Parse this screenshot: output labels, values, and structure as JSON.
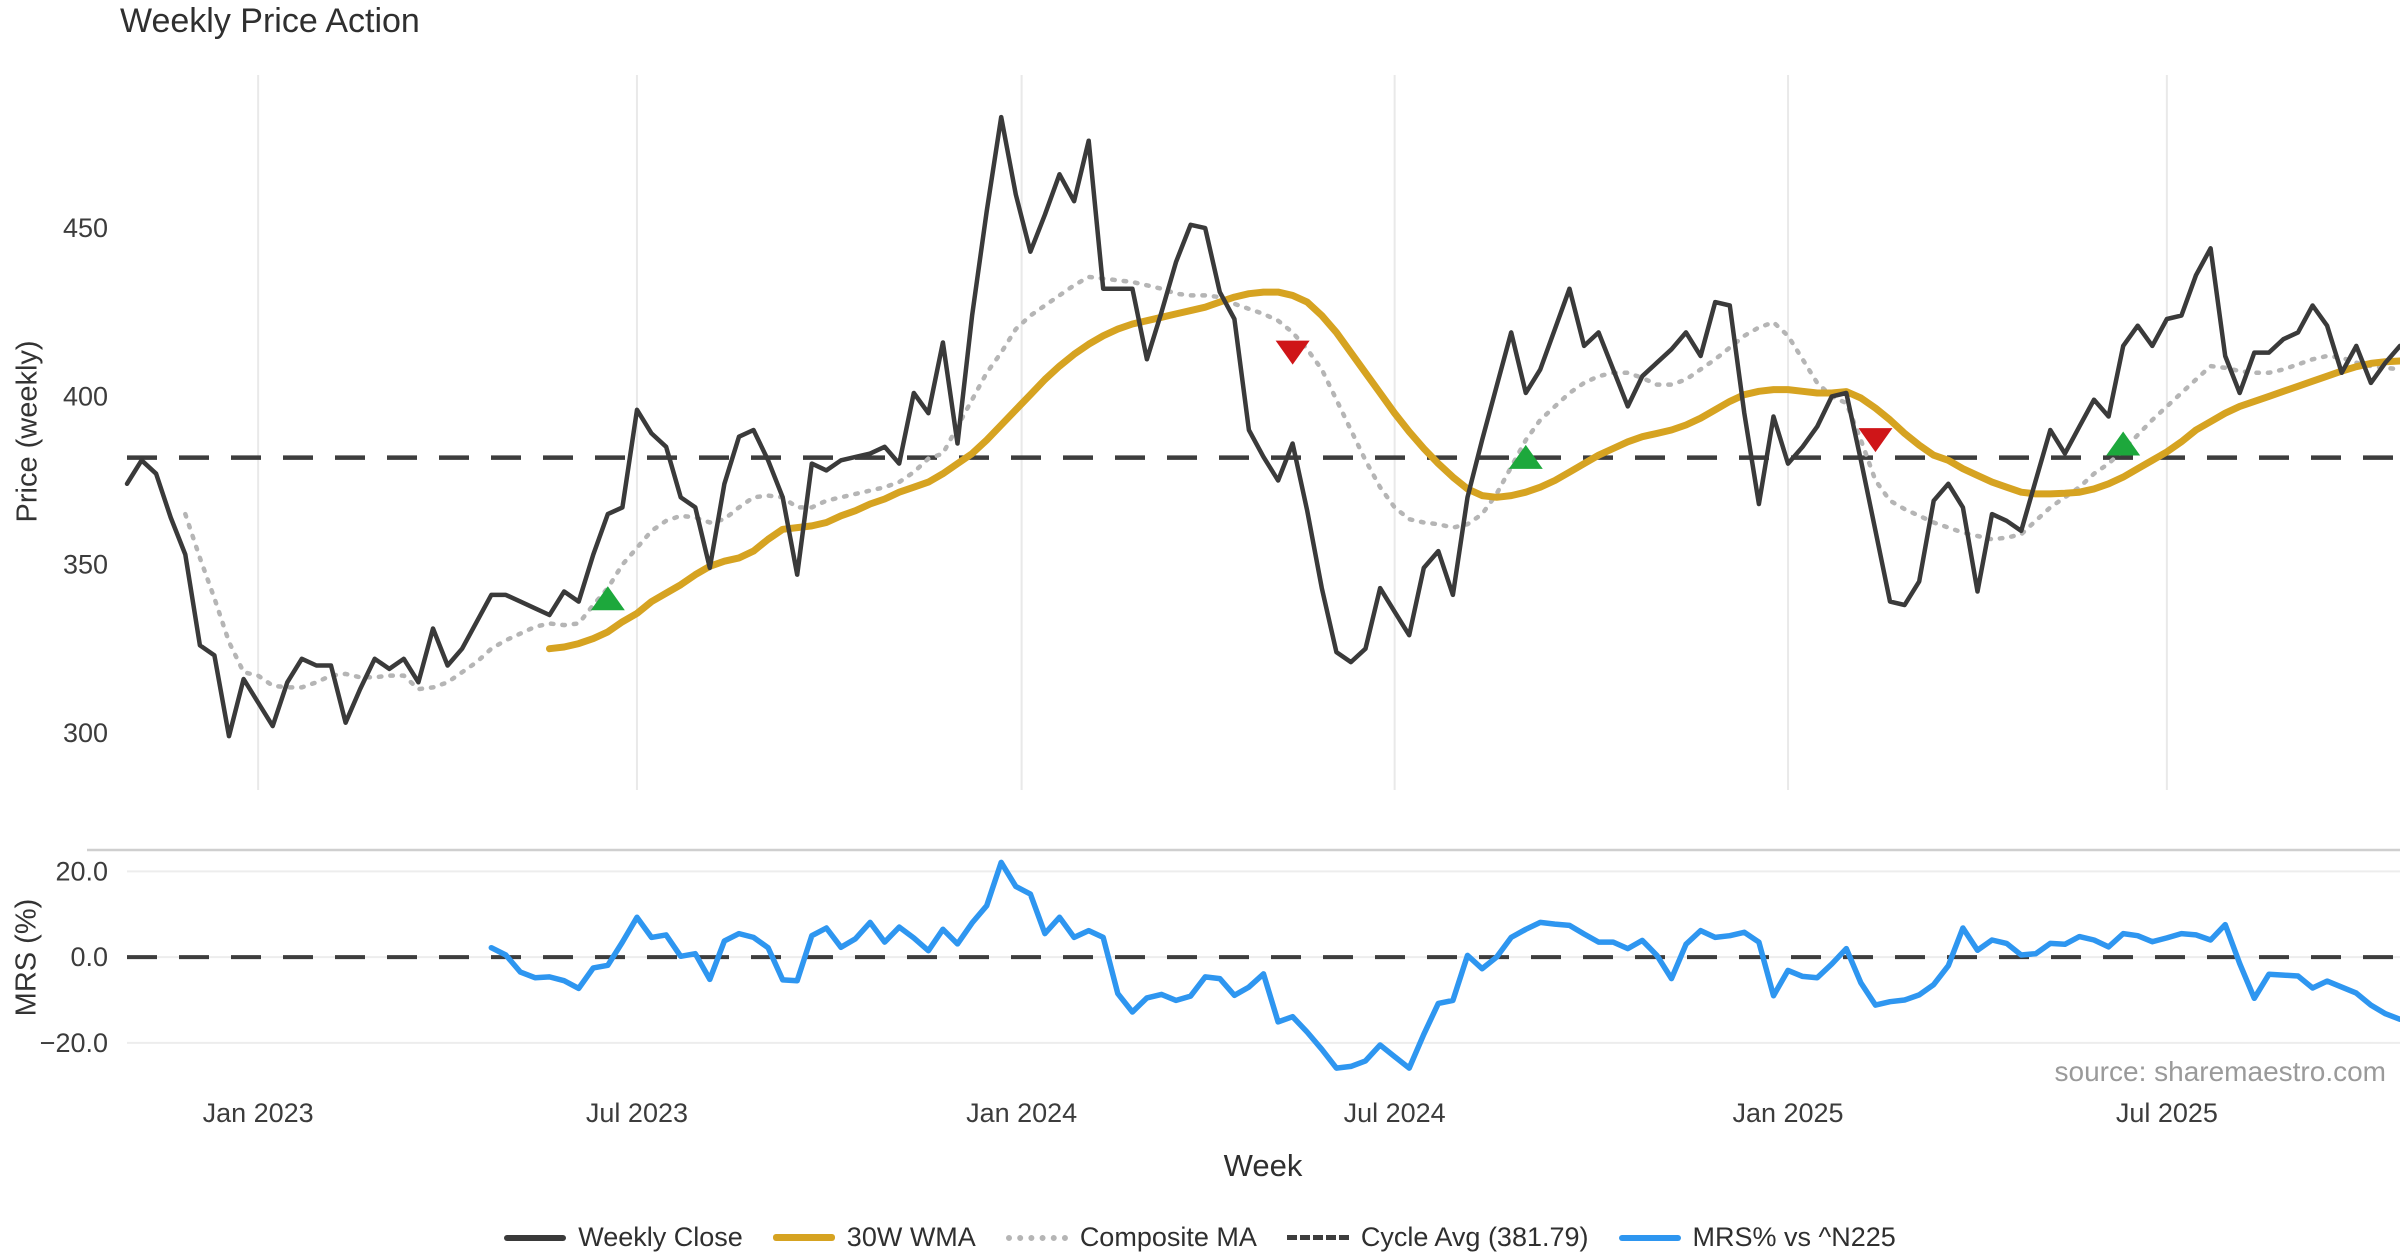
{
  "title": "Weekly Price Action",
  "source_note": "source: sharemaestro.com",
  "colors": {
    "weekly_close": "#3a3a3a",
    "wma30": "#d6a321",
    "composite": "#b5b5b5",
    "cycle_avg": "#3d3d3d",
    "mrs": "#2e96f0",
    "buy_marker": "#1da83c",
    "sell_marker": "#cf1518",
    "gridline": "#e9e9e9",
    "mrs_gridline": "#ededed",
    "mrs_top_spine": "#cfcfcf",
    "tick_text": "#3c3c3c"
  },
  "legend": [
    {
      "label": "Weekly Close",
      "swatch": "sw-solid-dark"
    },
    {
      "label": "30W WMA",
      "swatch": "sw-solid-gold"
    },
    {
      "label": "Composite MA",
      "swatch": "sw-dotted"
    },
    {
      "label": "Cycle Avg (381.79)",
      "swatch": "sw-dashed"
    },
    {
      "label": "MRS% vs ^N225",
      "swatch": "sw-solid-blue"
    }
  ],
  "chart_data": {
    "type": "line",
    "title": "Weekly Price Action",
    "xlabel": "Week",
    "weeks_total": 157,
    "x_ticks": [
      {
        "label": "Jan 2023",
        "week": 9
      },
      {
        "label": "Jul 2023",
        "week": 35
      },
      {
        "label": "Jan 2024",
        "week": 61.4
      },
      {
        "label": "Jul 2024",
        "week": 87
      },
      {
        "label": "Jan 2025",
        "week": 114
      },
      {
        "label": "Jul 2025",
        "week": 140
      }
    ],
    "price_panel": {
      "ylabel": "Price (weekly)",
      "yticks": [
        {
          "label": "450",
          "v": 450
        },
        {
          "label": "400",
          "v": 400
        },
        {
          "label": "350",
          "v": 350
        },
        {
          "label": "300",
          "v": 300
        }
      ],
      "ylim": [
        283,
        497
      ],
      "cycle_avg": 381.79,
      "weekly_close": [
        374,
        381,
        377,
        364,
        353,
        326,
        323,
        299,
        316,
        309,
        302,
        315,
        322,
        320,
        320,
        303,
        313,
        322,
        319,
        322,
        315,
        331,
        320,
        325,
        333,
        341,
        341,
        339,
        337,
        335,
        342,
        339,
        353,
        365,
        367,
        396,
        389,
        385,
        370,
        367,
        349,
        374,
        388,
        390,
        381,
        370,
        347,
        380,
        378,
        381,
        382,
        383,
        385,
        380,
        401,
        395,
        416,
        386,
        424,
        455,
        483,
        460,
        443,
        454,
        466,
        458,
        476,
        432,
        432,
        432,
        411,
        425,
        440,
        451,
        450,
        431,
        423,
        390,
        382,
        375,
        386,
        366,
        343,
        324,
        321,
        325,
        343,
        336,
        329,
        349,
        354,
        341,
        370,
        387,
        403,
        419,
        401,
        408,
        420,
        432,
        415,
        419,
        408,
        397,
        406,
        410,
        414,
        419,
        412,
        428,
        427,
        395,
        368,
        394,
        380,
        385,
        391,
        400,
        401,
        381,
        360,
        339,
        338,
        345,
        369,
        374,
        367,
        342,
        365,
        363,
        360,
        375,
        390,
        383,
        391,
        399,
        394,
        415,
        421,
        415,
        423,
        424,
        436,
        444,
        412,
        401,
        413,
        413,
        417,
        419,
        427,
        421,
        407,
        415,
        404,
        410,
        415
      ],
      "wma30": [
        null,
        null,
        null,
        null,
        null,
        null,
        null,
        null,
        null,
        null,
        null,
        null,
        null,
        null,
        null,
        null,
        null,
        null,
        null,
        null,
        null,
        null,
        null,
        null,
        null,
        null,
        null,
        null,
        null,
        325,
        325.5,
        326.5,
        328,
        330,
        333,
        335.5,
        339,
        341.5,
        344,
        347,
        349.5,
        351,
        352,
        354,
        357.5,
        360.5,
        361,
        361.5,
        362.5,
        364.5,
        366,
        368,
        369.5,
        371.5,
        373,
        374.5,
        377,
        380,
        383,
        387,
        391.5,
        396,
        400.5,
        405,
        409,
        412.5,
        415.5,
        418,
        420,
        421.5,
        422.5,
        423.5,
        424.5,
        425.5,
        426.5,
        428,
        429.5,
        430.5,
        431,
        431,
        430,
        428,
        424,
        419,
        413,
        407,
        401,
        395,
        389.5,
        384.5,
        380,
        376,
        372.5,
        370.5,
        370,
        370.5,
        371.5,
        373,
        375,
        377.5,
        380,
        382.5,
        384.5,
        386.5,
        388,
        389,
        390,
        391.5,
        393.5,
        396,
        398.5,
        400.5,
        401.5,
        402,
        402,
        401.5,
        401,
        401,
        401.4,
        399.5,
        396.5,
        393,
        389,
        385.5,
        382.5,
        381,
        378.5,
        376.5,
        374.5,
        373,
        371.5,
        371,
        371,
        371.2,
        371.5,
        372.5,
        374,
        376,
        378.5,
        381,
        383.5,
        386.5,
        390,
        392.5,
        395,
        397,
        398.5,
        400,
        401.5,
        403,
        404.5,
        406,
        407.5,
        408.8,
        409.8,
        410.3,
        410.5
      ],
      "composite": [
        null,
        null,
        null,
        null,
        365,
        352,
        340,
        327,
        318,
        317,
        314,
        313.5,
        313.5,
        315,
        317,
        317.5,
        316.5,
        316.5,
        317,
        317,
        313,
        313.5,
        315,
        318,
        321,
        325,
        327.5,
        329.5,
        331.5,
        332.5,
        332,
        332.5,
        338,
        343,
        350,
        355,
        360,
        363,
        364.5,
        364,
        362.5,
        363.5,
        367,
        370,
        370.5,
        370,
        367,
        367,
        369,
        370,
        371,
        372,
        373,
        374.5,
        377.5,
        381.5,
        383,
        391,
        399,
        407,
        413,
        420,
        424,
        427,
        430,
        433,
        435.5,
        435,
        434.5,
        434,
        433,
        432,
        430.5,
        430,
        430,
        429.5,
        427.5,
        426,
        424.5,
        422.5,
        419,
        414,
        408,
        399,
        390,
        381,
        373,
        367,
        363.5,
        362.5,
        362,
        361,
        362,
        365,
        371,
        379,
        387,
        393,
        397,
        401,
        404,
        406,
        407,
        407,
        405.5,
        403.5,
        403.5,
        405,
        408,
        411,
        414.5,
        418,
        420.5,
        422,
        418,
        411,
        404,
        400,
        398,
        387,
        375,
        369,
        366.5,
        364.5,
        362.5,
        361,
        359.5,
        358.5,
        357.5,
        358,
        359,
        363,
        367,
        370,
        373,
        377,
        380,
        384,
        388.5,
        393,
        397,
        401,
        405,
        409,
        408.5,
        407.5,
        407,
        407,
        408,
        409.5,
        411,
        412,
        411.5,
        410,
        409,
        408.5,
        408
      ],
      "signals": [
        {
          "week": 33,
          "value": 340,
          "dir": "up"
        },
        {
          "week": 80,
          "value": 413,
          "dir": "down"
        },
        {
          "week": 96,
          "value": 382,
          "dir": "up"
        },
        {
          "week": 120,
          "value": 387,
          "dir": "down"
        },
        {
          "week": 137,
          "value": 386,
          "dir": "up"
        }
      ]
    },
    "mrs_panel": {
      "ylabel": "MRS (%)",
      "yticks": [
        {
          "label": "20.0",
          "v": 20
        },
        {
          "label": "0.0",
          "v": 0
        },
        {
          "label": "−20.0",
          "v": -20
        }
      ],
      "ylim": [
        -31,
        25
      ],
      "zero_line": 0,
      "mrs": [
        null,
        null,
        null,
        null,
        null,
        null,
        null,
        null,
        null,
        null,
        null,
        null,
        null,
        null,
        null,
        null,
        null,
        null,
        null,
        null,
        null,
        null,
        null,
        null,
        null,
        2.2,
        0.5,
        -3.5,
        -4.8,
        -4.6,
        -5.5,
        -7.3,
        -2.5,
        -1.9,
        3.5,
        9.3,
        4.6,
        5.2,
        0.2,
        0.8,
        -5.2,
        3.8,
        5.5,
        4.6,
        2.2,
        -5.3,
        -5.5,
        5.0,
        6.8,
        2.3,
        4.3,
        8.1,
        3.5,
        7.0,
        4.5,
        1.5,
        6.5,
        3.1,
        8.0,
        12.0,
        22.1,
        16.5,
        14.7,
        5.5,
        9.3,
        4.6,
        6.2,
        4.6,
        -8.5,
        -12.8,
        -9.5,
        -8.7,
        -10.1,
        -9.1,
        -4.6,
        -5.0,
        -8.9,
        -7.0,
        -3.9,
        -15.1,
        -13.9,
        -17.5,
        -21.5,
        -25.9,
        -25.5,
        -24.2,
        -20.5,
        -23.2,
        -25.9,
        -18.0,
        -10.8,
        -10.1,
        0.4,
        -2.7,
        0.0,
        4.6,
        6.5,
        8.1,
        7.7,
        7.4,
        5.4,
        3.5,
        3.5,
        2.0,
        3.9,
        0.4,
        -5.0,
        3.0,
        6.2,
        4.6,
        5.0,
        5.8,
        3.5,
        -9.0,
        -3.1,
        -4.5,
        -4.8,
        -1.6,
        2.0,
        -6.0,
        -11.2,
        -10.4,
        -10.0,
        -8.8,
        -6.4,
        -2.0,
        6.8,
        1.6,
        4.0,
        3.2,
        0.5,
        0.8,
        3.2,
        3.0,
        4.8,
        4.0,
        2.4,
        5.5,
        5.0,
        3.6,
        4.5,
        5.5,
        5.2,
        4.0,
        7.6,
        -1.5,
        -9.6,
        -4.0,
        -4.2,
        -4.4,
        -7.2,
        -5.6,
        -7.0,
        -8.4,
        -11.2,
        -13.2,
        -14.5
      ]
    }
  }
}
